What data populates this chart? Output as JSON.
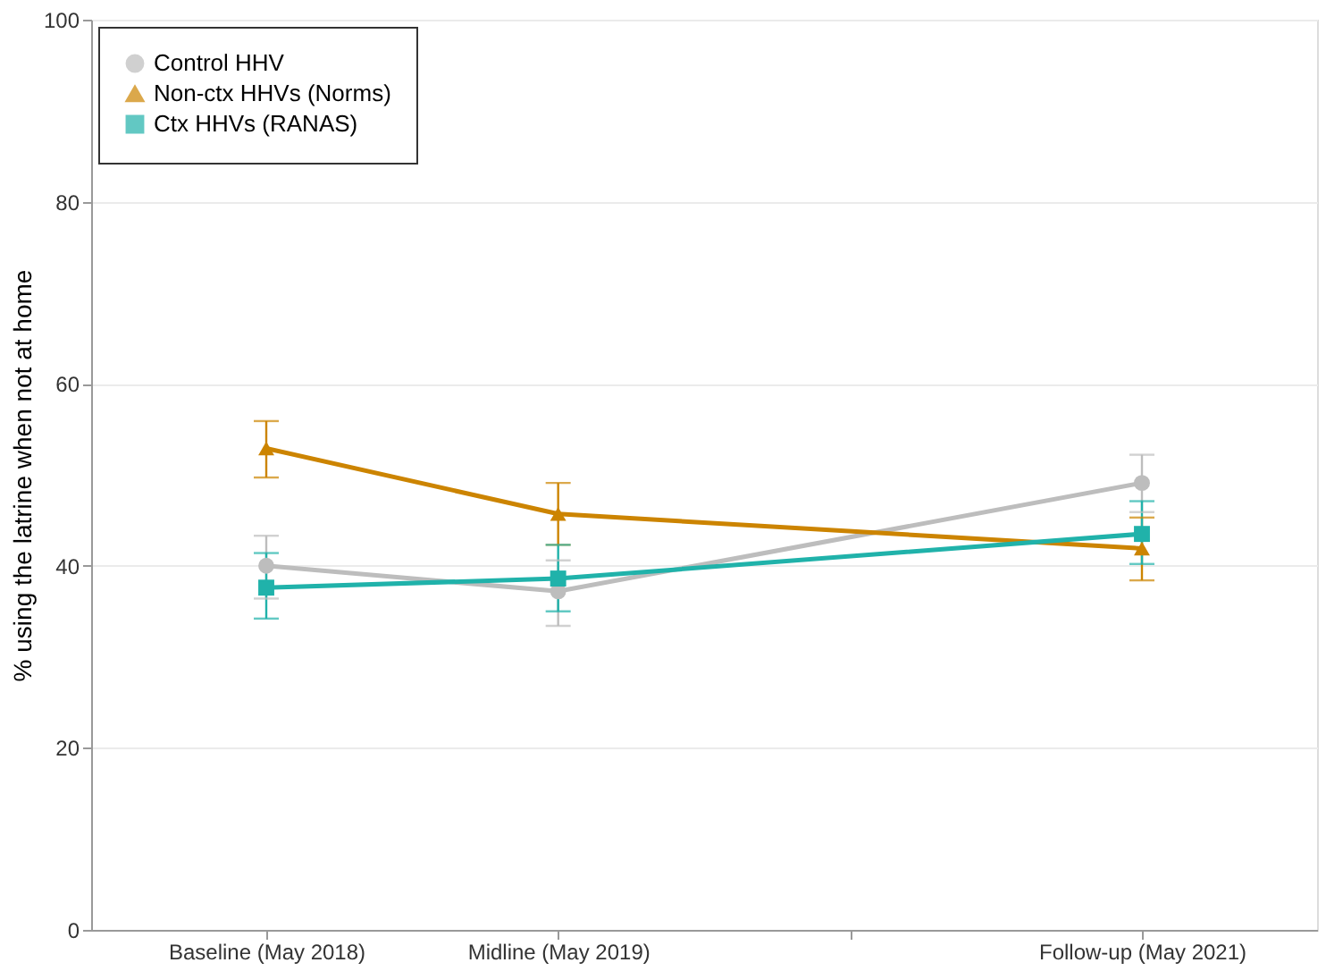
{
  "chart_data": {
    "type": "line",
    "ylabel": "% using the latrine when not at home",
    "categories": [
      "Baseline (May 2018)",
      "Midline (May 2019)",
      null,
      "Follow-up (May 2021)"
    ],
    "ylim": [
      0,
      100
    ],
    "yticks": [
      0,
      20,
      40,
      60,
      80,
      100
    ],
    "grid": "y",
    "legend": "top left",
    "series": [
      {
        "name": "Control HHV",
        "color": "#bdbdbd",
        "marker": "circle",
        "values": [
          40.0,
          37.2,
          null,
          49.1
        ],
        "errors": [
          [
            36.4,
            43.3
          ],
          [
            33.4,
            40.6
          ],
          null,
          [
            45.9,
            52.2
          ]
        ]
      },
      {
        "name": "Non-ctx HHVs (Norms)",
        "color": "#cc8400",
        "marker": "triangle",
        "values": [
          52.9,
          45.7,
          null,
          41.9
        ],
        "errors": [
          [
            49.7,
            55.9
          ],
          [
            42.3,
            49.1
          ],
          null,
          [
            38.4,
            45.3
          ]
        ]
      },
      {
        "name": "Ctx HHVs (RANAS)",
        "color": "#20b2aa",
        "marker": "square",
        "values": [
          37.6,
          38.6,
          null,
          43.5
        ],
        "errors": [
          [
            34.2,
            41.4
          ],
          [
            35.0,
            42.3
          ],
          null,
          [
            40.2,
            47.1
          ]
        ]
      }
    ]
  }
}
